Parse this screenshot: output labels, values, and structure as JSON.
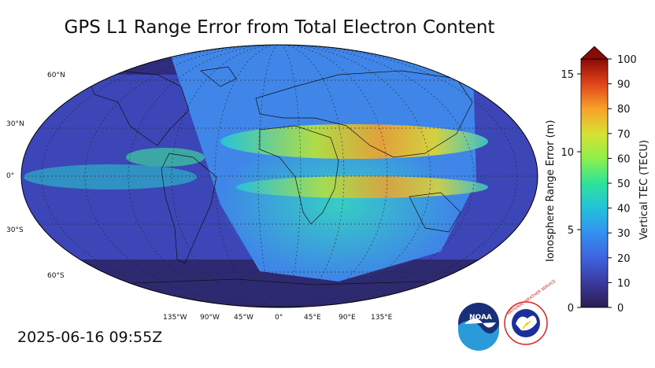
{
  "title": "GPS L1 Range Error from Total Electron Content",
  "timestamp": "2025-06-16 09:55Z",
  "map": {
    "lat_labels": [
      "60°N",
      "30°N",
      "0°",
      "30°S",
      "60°S"
    ],
    "lon_labels": [
      "135°W",
      "90°W",
      "45°W",
      "0°",
      "45°E",
      "90°E",
      "135°E"
    ]
  },
  "colorbar": {
    "left_label": "Ionosphere Range Error (m)",
    "right_label": "Vertical TEC (TECU)",
    "left_ticks": [
      "0",
      "5",
      "10",
      "15"
    ],
    "right_ticks": [
      "0",
      "10",
      "20",
      "30",
      "40",
      "50",
      "60",
      "70",
      "80",
      "90",
      "100"
    ],
    "colors": [
      "#2c1d4f",
      "#3a3a9e",
      "#3f63e0",
      "#3490f0",
      "#21c2da",
      "#2ee39a",
      "#8ef04a",
      "#d8e034",
      "#f8a12a",
      "#e0451a",
      "#8a0a05"
    ]
  },
  "logos": {
    "noaa_text": "NOAA",
    "nws_text": "NATIONAL WEATHER SERVICE"
  }
}
